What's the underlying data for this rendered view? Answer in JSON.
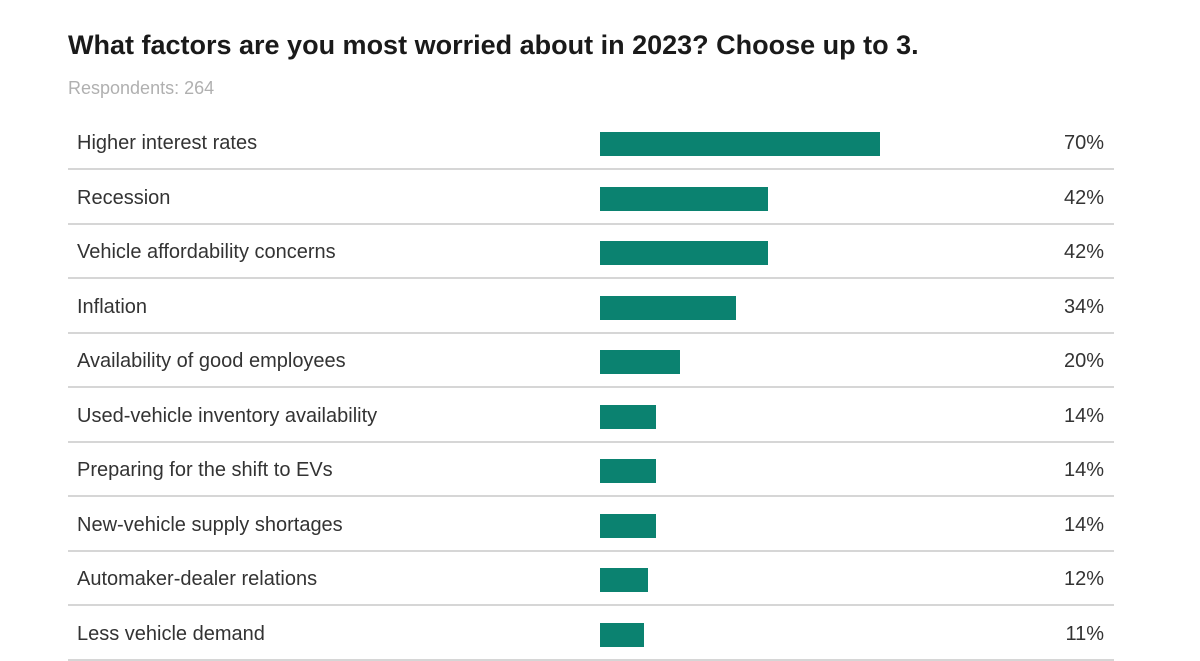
{
  "header": {
    "title": "What factors are you most worried about in 2023? Choose up to 3.",
    "respondents": "Respondents: 264"
  },
  "colors": {
    "bar": "#0b8270",
    "divider": "#d6d6d6"
  },
  "chart_data": {
    "type": "bar",
    "orientation": "horizontal",
    "title": "What factors are you most worried about in 2023? Choose up to 3.",
    "subtitle": "Respondents: 264",
    "xlim": [
      0,
      100
    ],
    "grid": false,
    "legend": "none",
    "categories": [
      "Higher interest rates",
      "Recession",
      "Vehicle affordability concerns",
      "Inflation",
      "Availability of good employees",
      "Used-vehicle inventory availability",
      "Preparing for the shift to EVs",
      "New-vehicle supply shortages",
      "Automaker-dealer relations",
      "Less vehicle demand"
    ],
    "values": [
      70,
      42,
      42,
      34,
      20,
      14,
      14,
      14,
      12,
      11
    ],
    "value_labels": [
      "70%",
      "42%",
      "42%",
      "34%",
      "20%",
      "14%",
      "14%",
      "14%",
      "12%",
      "11%"
    ]
  }
}
